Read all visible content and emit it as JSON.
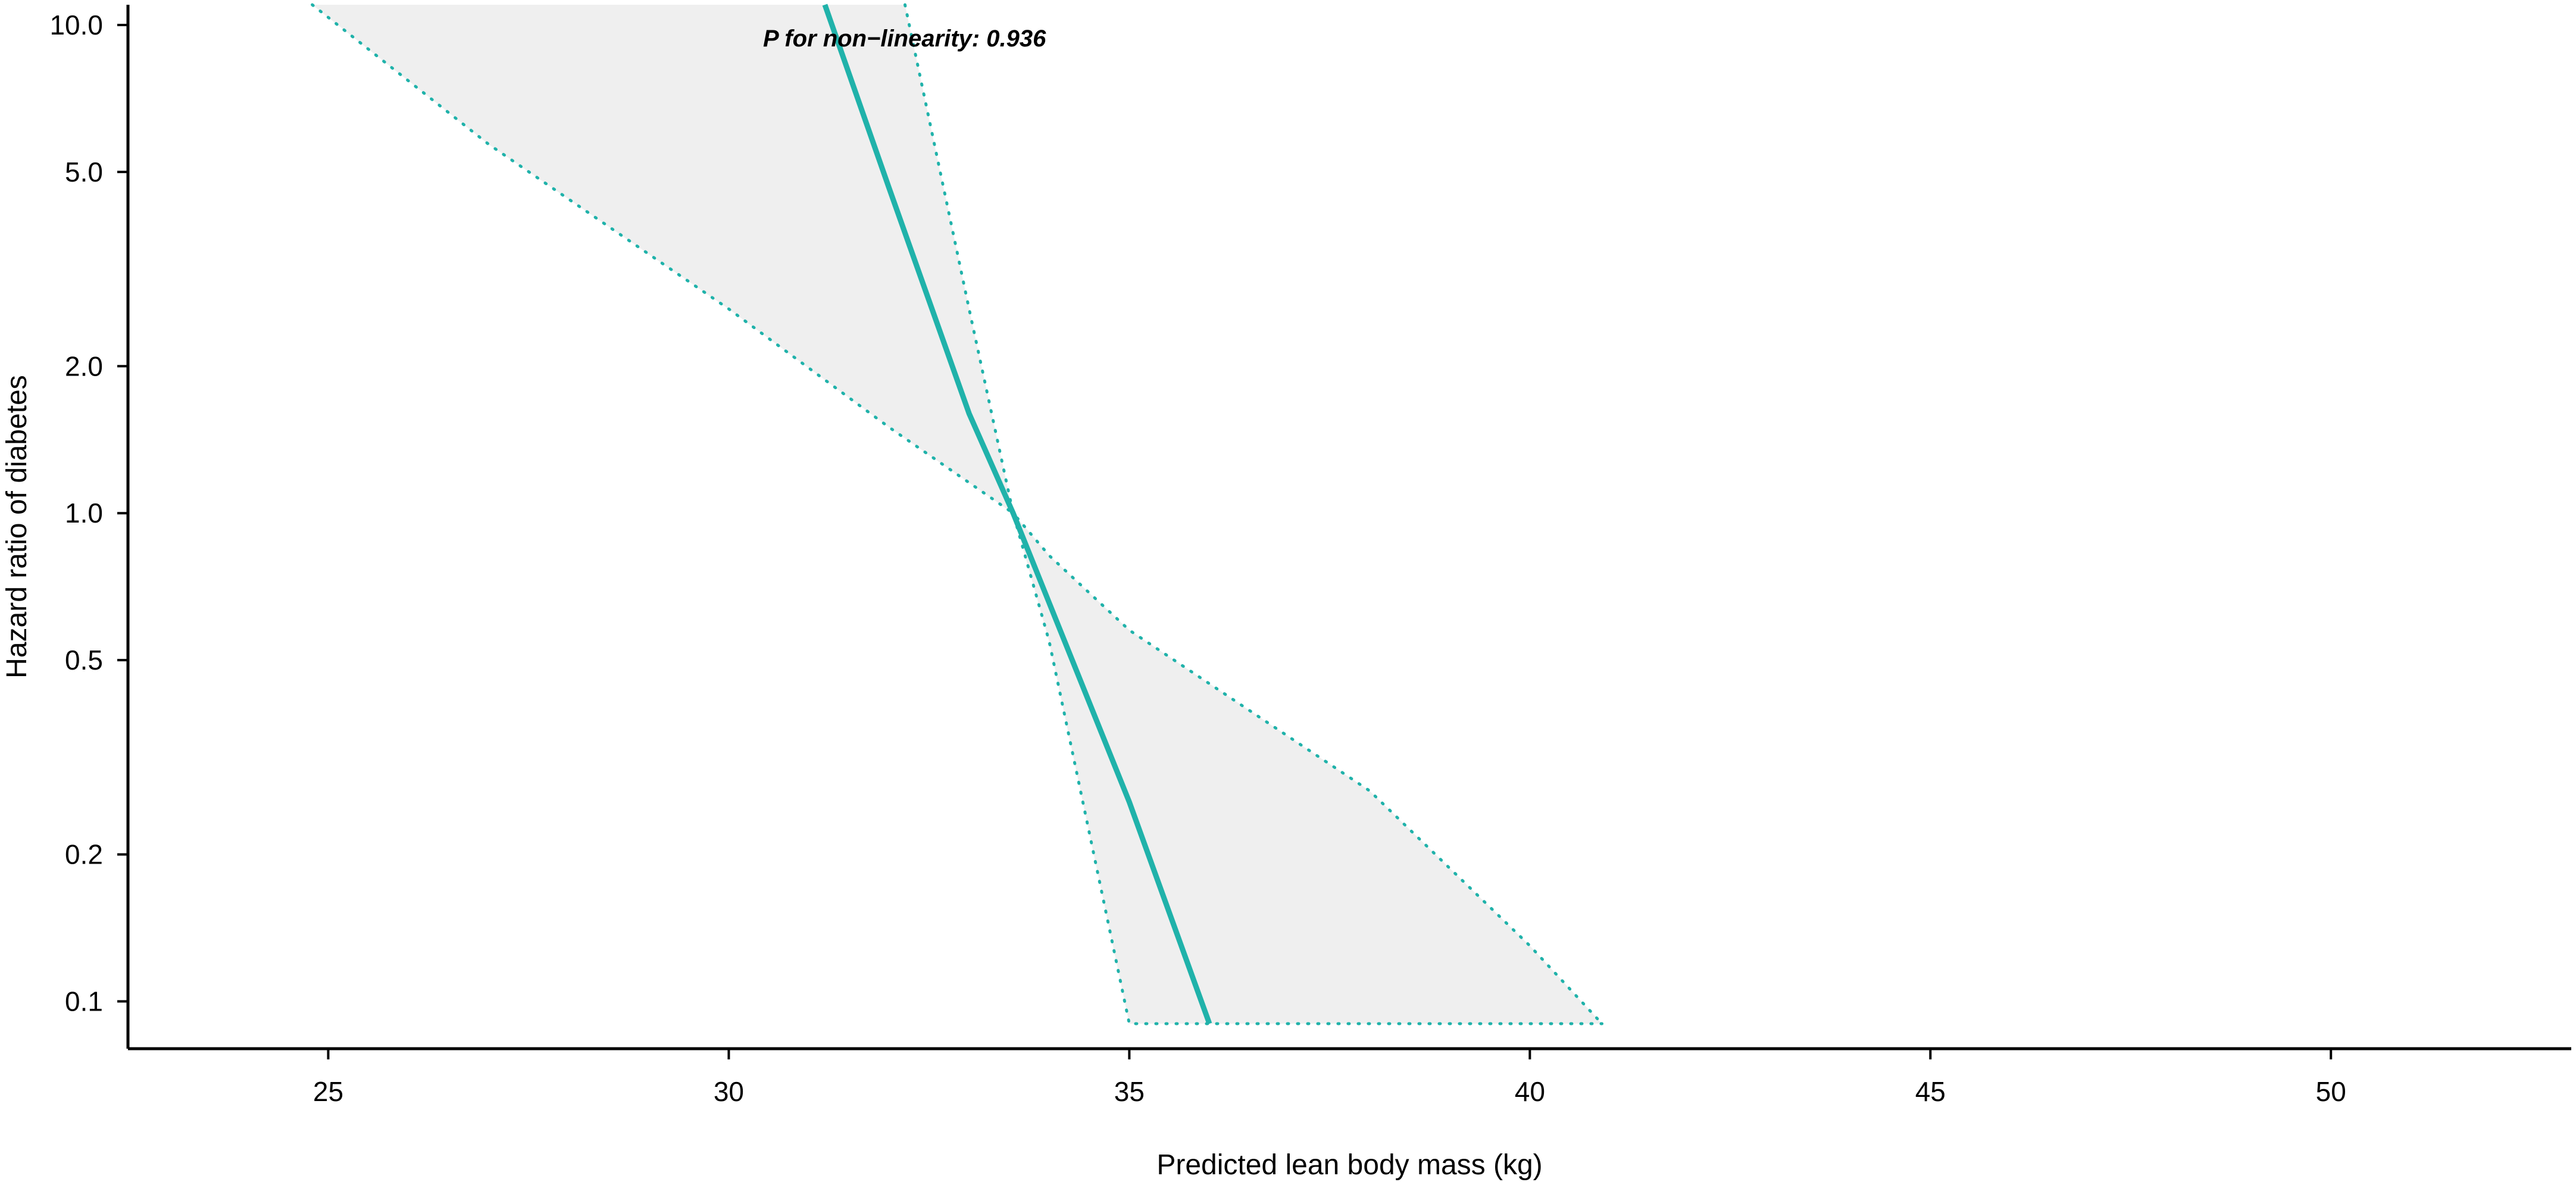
{
  "chart_data": {
    "type": "line",
    "title": "",
    "xlabel": "Predicted lean body mass (kg)",
    "ylabel": "Hazard ratio of diabetes",
    "x_scale": "linear",
    "y_scale": "log",
    "xlim": [
      22.5,
      53
    ],
    "ylim": [
      0.08,
      11
    ],
    "x_ticks": [
      25,
      30,
      35,
      40,
      45,
      50
    ],
    "x_tick_labels": [
      "25",
      "30",
      "35",
      "40",
      "45",
      "50"
    ],
    "y_ticks": [
      0.1,
      0.2,
      0.5,
      1.0,
      2.0,
      5.0,
      10.0
    ],
    "y_tick_labels": [
      "0.1",
      "0.2",
      "0.5",
      "1.0",
      "2.0",
      "5.0",
      "10.0"
    ],
    "grid": false,
    "annotation": "P for non−linearity: 0.936",
    "colors": {
      "line": "#20b2aa",
      "band": "#efefef",
      "axis": "#000000"
    },
    "series": [
      {
        "role": "estimate",
        "style": "solid",
        "x": [
          31.2,
          32.0,
          33.0,
          33.55,
          34.0,
          35.0,
          36.0
        ],
        "y": [
          11.0,
          4.64,
          1.6,
          1.0,
          0.655,
          0.256,
          0.09
        ]
      },
      {
        "role": "lower",
        "style": "dotted",
        "x": [
          24.8,
          27.0,
          30.0,
          32.0,
          33.55,
          34.0,
          35.0,
          36.0,
          38.0,
          40.0,
          40.9
        ],
        "y": [
          11.0,
          5.7,
          2.62,
          1.5,
          1.0,
          0.546,
          0.09,
          0.09,
          0.09,
          0.09,
          0.09
        ]
      },
      {
        "role": "upper",
        "style": "dotted",
        "x": [
          32.2,
          33.0,
          33.55,
          34.0,
          35.0,
          38.0,
          40.0,
          40.9
        ],
        "y": [
          11.0,
          2.62,
          1.0,
          0.819,
          0.576,
          0.27,
          0.13,
          0.09
        ]
      }
    ]
  }
}
